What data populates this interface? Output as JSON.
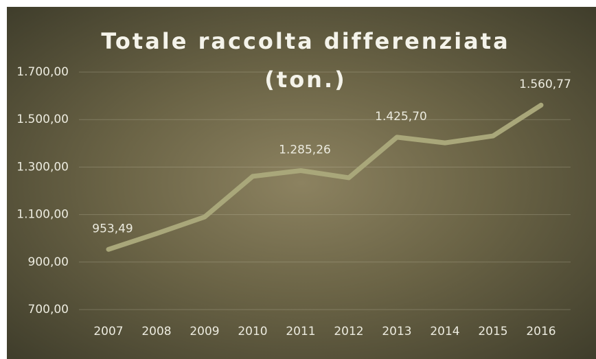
{
  "chart_data": {
    "type": "line",
    "title": "Totale raccolta differenziata (ton.)",
    "categories": [
      "2007",
      "2008",
      "2009",
      "2010",
      "2011",
      "2012",
      "2013",
      "2014",
      "2015",
      "2016"
    ],
    "series": [
      {
        "name": "Totale raccolta differenziata (ton.)",
        "color": "#a9a77a",
        "values": [
          953.49,
          1020,
          1090,
          1261,
          1285.26,
          1255,
          1425.7,
          1402,
          1431,
          1560.77
        ],
        "value_labels": [
          "953,49",
          null,
          null,
          null,
          "1.285,26",
          null,
          "1.425,70",
          null,
          null,
          "1.560,77"
        ]
      }
    ],
    "ylim": [
      700,
      1700
    ],
    "yticks": [
      {
        "value": 700,
        "label": "700,00"
      },
      {
        "value": 900,
        "label": "900,00"
      },
      {
        "value": 1100,
        "label": "1.100,00"
      },
      {
        "value": 1300,
        "label": "1.300,00"
      },
      {
        "value": 1500,
        "label": "1.500,00"
      },
      {
        "value": 1700,
        "label": "1.700,00"
      }
    ],
    "grid": true
  }
}
